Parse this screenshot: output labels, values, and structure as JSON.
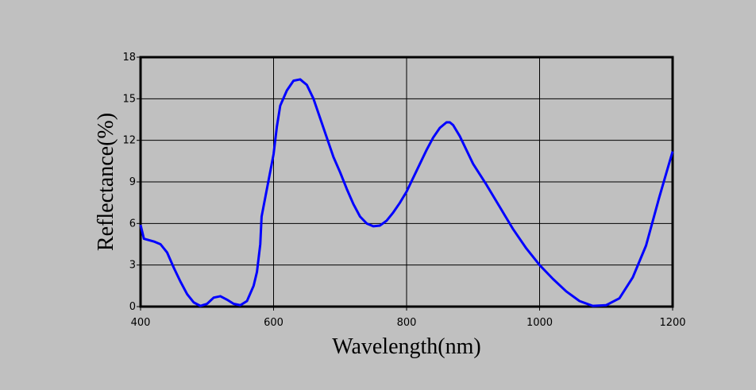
{
  "chart_data": {
    "type": "line",
    "x_label": "Wavelength(nm)",
    "y_label": "Reflectance(%)",
    "xlim": [
      400,
      1200
    ],
    "xticks": [
      400,
      600,
      800,
      1000,
      1200
    ],
    "ylim": [
      0,
      18
    ],
    "yticks": [
      0,
      3,
      6,
      9,
      12,
      15,
      18
    ],
    "grid": true,
    "series": [
      {
        "color": "#0000ff",
        "x": [
          400,
          405,
          420,
          430,
          440,
          450,
          460,
          470,
          480,
          490,
          500,
          510,
          520,
          530,
          540,
          550,
          560,
          570,
          575,
          580,
          582,
          590,
          600,
          605,
          610,
          620,
          630,
          640,
          650,
          660,
          670,
          680,
          690,
          700,
          710,
          720,
          730,
          740,
          750,
          760,
          770,
          780,
          790,
          800,
          810,
          820,
          830,
          840,
          850,
          860,
          865,
          870,
          880,
          890,
          900,
          920,
          940,
          960,
          980,
          1000,
          1020,
          1040,
          1060,
          1080,
          1100,
          1120,
          1140,
          1160,
          1180,
          1200
        ],
        "values": [
          5.9,
          4.9,
          4.7,
          4.5,
          3.9,
          2.8,
          1.8,
          0.9,
          0.3,
          0.05,
          0.2,
          0.65,
          0.75,
          0.5,
          0.2,
          0.1,
          0.4,
          1.5,
          2.5,
          4.5,
          6.5,
          8.5,
          11,
          13,
          14.5,
          15.6,
          16.3,
          16.4,
          16.0,
          15.0,
          13.6,
          12.2,
          10.8,
          9.7,
          8.5,
          7.4,
          6.5,
          6.0,
          5.8,
          5.85,
          6.2,
          6.8,
          7.5,
          8.3,
          9.3,
          10.3,
          11.3,
          12.2,
          12.9,
          13.3,
          13.3,
          13.1,
          12.3,
          11.3,
          10.3,
          8.8,
          7.2,
          5.6,
          4.2,
          3.0,
          2.0,
          1.1,
          0.4,
          0.05,
          0.1,
          0.6,
          2.1,
          4.4,
          7.9,
          11.2
        ]
      }
    ]
  }
}
